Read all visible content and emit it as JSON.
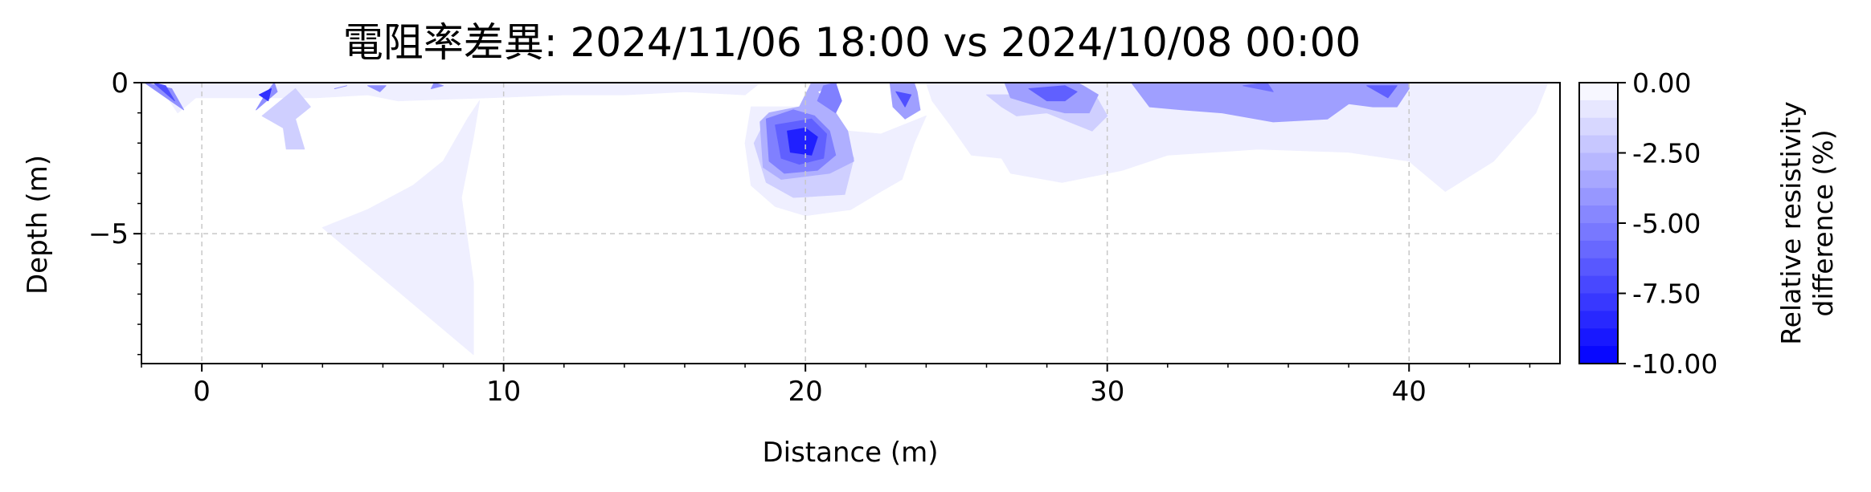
{
  "chart_data": {
    "type": "contour",
    "title": "電阻率差異: 2024/11/06 18:00 vs 2024/10/08 00:00",
    "xlabel": "Distance (m)",
    "ylabel": "Depth (m)",
    "xlim": [
      -2.0,
      45.0
    ],
    "ylim": [
      -9.3,
      0.0
    ],
    "grid": true,
    "xticks": [
      {
        "value": 0,
        "label": "0"
      },
      {
        "value": 10,
        "label": "10"
      },
      {
        "value": 20,
        "label": "20"
      },
      {
        "value": 30,
        "label": "30"
      },
      {
        "value": 40,
        "label": "40"
      }
    ],
    "yticks": [
      {
        "value": 0,
        "label": "0"
      },
      {
        "value": -5,
        "label": "−5"
      }
    ],
    "colorbar": {
      "label_lines": [
        "Relative resistivity",
        "difference (%)"
      ],
      "min": -10.0,
      "max": 0.0,
      "levels": 16,
      "color_low": "#0000ff",
      "color_high": "#ffffff",
      "ticks": [
        {
          "value": 0.0,
          "label": "0.00"
        },
        {
          "value": -2.5,
          "label": "-2.50"
        },
        {
          "value": -5.0,
          "label": "-5.00"
        },
        {
          "value": -7.5,
          "label": "-7.50"
        },
        {
          "value": -10.0,
          "label": "-10.00"
        }
      ]
    },
    "regions": [
      {
        "level": -0.9,
        "points": [
          [
            4.0,
            -4.8
          ],
          [
            5.5,
            -4.2
          ],
          [
            7.0,
            -3.4
          ],
          [
            8.0,
            -2.6
          ],
          [
            8.8,
            -1.2
          ],
          [
            9.2,
            -0.6
          ],
          [
            9.0,
            -1.8
          ],
          [
            8.6,
            -3.8
          ],
          [
            9.0,
            -6.6
          ],
          [
            9.0,
            -9.0
          ]
        ]
      },
      {
        "level": -0.9,
        "points": [
          [
            -1.4,
            -0.1
          ],
          [
            -0.8,
            -1.0
          ],
          [
            -0.2,
            -0.5
          ],
          [
            3.8,
            -0.5
          ],
          [
            5.5,
            -0.4
          ],
          [
            6.5,
            -0.6
          ],
          [
            9.5,
            -0.5
          ],
          [
            12.0,
            -0.4
          ],
          [
            14.0,
            -0.4
          ],
          [
            16.0,
            -0.3
          ],
          [
            18.0,
            -0.4
          ],
          [
            18.5,
            0
          ],
          [
            24.0,
            0
          ],
          [
            24.2,
            -0.6
          ],
          [
            24.8,
            -1.4
          ],
          [
            25.5,
            -2.4
          ],
          [
            26.5,
            -2.5
          ],
          [
            26.8,
            -3.0
          ],
          [
            28.5,
            -3.3
          ],
          [
            30.5,
            -2.9
          ],
          [
            32.0,
            -2.4
          ],
          [
            35.0,
            -2.2
          ],
          [
            38.0,
            -2.3
          ],
          [
            40.0,
            -2.6
          ],
          [
            41.2,
            -3.6
          ],
          [
            42.8,
            -2.6
          ],
          [
            44.2,
            -1.0
          ],
          [
            44.6,
            0
          ],
          [
            45.0,
            0
          ],
          [
            45.0,
            -0.02
          ],
          [
            -1.4,
            -0.02
          ]
        ]
      },
      {
        "level": -0.9,
        "points": [
          [
            18.2,
            -0.8
          ],
          [
            18.0,
            -2.0
          ],
          [
            18.2,
            -3.4
          ],
          [
            19.0,
            -4.1
          ],
          [
            20.0,
            -4.4
          ],
          [
            21.5,
            -4.2
          ],
          [
            22.5,
            -3.6
          ],
          [
            23.2,
            -3.2
          ],
          [
            23.6,
            -2.0
          ],
          [
            24.0,
            -1.1
          ],
          [
            22.5,
            -1.7
          ],
          [
            21.4,
            -1.6
          ],
          [
            20.2,
            -0.8
          ]
        ]
      },
      {
        "level": -2.0,
        "points": [
          [
            2.0,
            -1.1
          ],
          [
            2.7,
            -1.5
          ],
          [
            2.8,
            -2.2
          ],
          [
            3.4,
            -2.2
          ],
          [
            3.1,
            -1.2
          ],
          [
            3.6,
            -0.8
          ],
          [
            3.1,
            -0.2
          ]
        ]
      },
      {
        "level": -2.0,
        "points": [
          [
            18.3,
            -2.0
          ],
          [
            18.7,
            -3.3
          ],
          [
            19.6,
            -3.8
          ],
          [
            21.3,
            -3.7
          ],
          [
            21.6,
            -2.5
          ],
          [
            21.0,
            -1.2
          ],
          [
            20.0,
            -1.0
          ],
          [
            18.7,
            -1.2
          ]
        ]
      },
      {
        "level": -2.0,
        "points": [
          [
            26.0,
            -0.4
          ],
          [
            26.5,
            -0.8
          ],
          [
            27.0,
            -1.1
          ],
          [
            28.0,
            -1.0
          ],
          [
            29.5,
            -1.6
          ],
          [
            30.0,
            -1.1
          ],
          [
            29.6,
            -0.4
          ]
        ]
      },
      {
        "level": -3.4,
        "points": [
          [
            18.5,
            -1.3
          ],
          [
            18.6,
            -2.8
          ],
          [
            19.2,
            -3.2
          ],
          [
            20.8,
            -3.0
          ],
          [
            21.6,
            -2.6
          ],
          [
            21.4,
            -1.6
          ],
          [
            20.8,
            -0.7
          ],
          [
            20.4,
            -0.3
          ],
          [
            21.1,
            0
          ],
          [
            20.2,
            0
          ],
          [
            19.8,
            -0.8
          ],
          [
            18.8,
            -1.0
          ]
        ]
      },
      {
        "level": -3.8,
        "points": [
          [
            30.8,
            0
          ],
          [
            31.4,
            -0.8
          ],
          [
            32.5,
            -0.9
          ],
          [
            33.8,
            -1.0
          ],
          [
            35.5,
            -1.3
          ],
          [
            37.3,
            -1.2
          ],
          [
            38.0,
            -0.7
          ],
          [
            38.8,
            -0.8
          ],
          [
            39.6,
            -0.8
          ],
          [
            40.0,
            -0.2
          ],
          [
            40.0,
            0
          ]
        ]
      },
      {
        "level": -4.0,
        "points": [
          [
            22.8,
            0
          ],
          [
            22.9,
            -0.8
          ],
          [
            23.3,
            -1.2
          ],
          [
            23.8,
            -0.9
          ],
          [
            23.7,
            -0.3
          ],
          [
            23.6,
            0
          ]
        ]
      },
      {
        "level": -4.0,
        "points": [
          [
            26.6,
            0
          ],
          [
            26.8,
            -0.5
          ],
          [
            27.8,
            -0.8
          ],
          [
            28.6,
            -1.0
          ],
          [
            29.4,
            -1.0
          ],
          [
            29.7,
            -0.4
          ],
          [
            29.2,
            -0.1
          ],
          [
            29.0,
            0
          ]
        ]
      },
      {
        "level": -4.2,
        "points": [
          [
            1.8,
            -0.9
          ],
          [
            2.5,
            -0.3
          ],
          [
            2.4,
            0
          ],
          [
            2.1,
            -0.4
          ]
        ]
      },
      {
        "level": -4.5,
        "points": [
          [
            -1.9,
            0
          ],
          [
            -0.6,
            -0.9
          ],
          [
            -1.0,
            -0.2
          ]
        ]
      },
      {
        "level": -4.5,
        "points": [
          [
            4.4,
            -0.2
          ],
          [
            4.8,
            -0.1
          ]
        ]
      },
      {
        "level": -4.5,
        "points": [
          [
            5.5,
            -0.1
          ],
          [
            5.9,
            -0.3
          ],
          [
            6.1,
            -0.1
          ]
        ]
      },
      {
        "level": -4.5,
        "points": [
          [
            7.6,
            -0.2
          ],
          [
            8.0,
            -0.1
          ],
          [
            7.7,
            0
          ]
        ]
      },
      {
        "level": -5.0,
        "points": [
          [
            18.7,
            -1.2
          ],
          [
            18.8,
            -2.6
          ],
          [
            19.3,
            -3.0
          ],
          [
            20.4,
            -2.9
          ],
          [
            21.0,
            -2.4
          ],
          [
            20.8,
            -1.6
          ],
          [
            20.3,
            -1.1
          ],
          [
            19.6,
            -0.9
          ]
        ]
      },
      {
        "level": -5.0,
        "points": [
          [
            20.4,
            -0.6
          ],
          [
            20.6,
            -0.1
          ],
          [
            21.0,
            0
          ],
          [
            21.2,
            -0.6
          ],
          [
            21.0,
            -1.0
          ]
        ]
      },
      {
        "level": -5.6,
        "points": [
          [
            34.5,
            -0.1
          ],
          [
            35.5,
            -0.3
          ],
          [
            35.3,
            0
          ]
        ]
      },
      {
        "level": -6.0,
        "points": [
          [
            38.6,
            -0.1
          ],
          [
            39.3,
            -0.5
          ],
          [
            39.6,
            -0.1
          ]
        ]
      },
      {
        "level": -6.5,
        "points": [
          [
            19.0,
            -1.4
          ],
          [
            19.2,
            -2.5
          ],
          [
            19.8,
            -2.7
          ],
          [
            20.6,
            -2.5
          ],
          [
            20.7,
            -1.7
          ],
          [
            20.2,
            -1.2
          ]
        ]
      },
      {
        "level": -6.5,
        "points": [
          [
            27.4,
            -0.2
          ],
          [
            28.0,
            -0.6
          ],
          [
            28.6,
            -0.6
          ],
          [
            29.0,
            -0.3
          ],
          [
            28.6,
            -0.1
          ]
        ]
      },
      {
        "level": -7.0,
        "points": [
          [
            -1.6,
            0
          ],
          [
            -0.9,
            -0.6
          ],
          [
            -1.2,
            -0.1
          ]
        ]
      },
      {
        "level": -7.0,
        "points": [
          [
            23.0,
            -0.3
          ],
          [
            23.3,
            -0.8
          ],
          [
            23.5,
            -0.4
          ]
        ]
      },
      {
        "level": -8.5,
        "points": [
          [
            19.4,
            -1.6
          ],
          [
            19.5,
            -2.3
          ],
          [
            20.2,
            -2.4
          ],
          [
            20.4,
            -1.8
          ],
          [
            20.0,
            -1.5
          ]
        ]
      },
      {
        "level": -8.0,
        "points": [
          [
            1.9,
            -0.4
          ],
          [
            2.2,
            -0.6
          ],
          [
            2.3,
            -0.2
          ]
        ]
      }
    ]
  }
}
